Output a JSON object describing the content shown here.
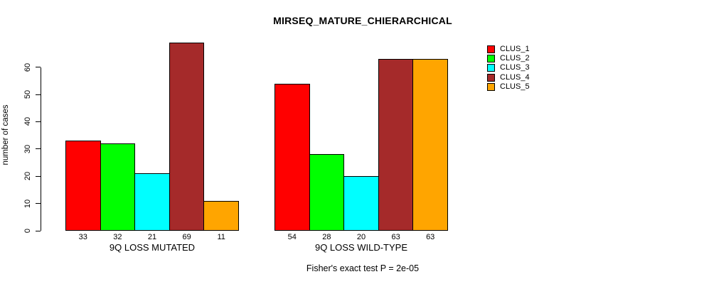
{
  "chart_data": {
    "type": "bar",
    "title": "MIRSEQ_MATURE_CHIERARCHICAL",
    "categories": [
      "9Q LOSS MUTATED",
      "9Q LOSS WILD-TYPE"
    ],
    "series": [
      {
        "name": "CLUS_1",
        "color": "#ff0000",
        "values": [
          33,
          54
        ]
      },
      {
        "name": "CLUS_2",
        "color": "#00ff00",
        "values": [
          32,
          28
        ]
      },
      {
        "name": "CLUS_3",
        "color": "#00ffff",
        "values": [
          21,
          20
        ]
      },
      {
        "name": "CLUS_4",
        "color": "#a52a2a",
        "values": [
          69,
          63
        ]
      },
      {
        "name": "CLUS_5",
        "color": "#ffa500",
        "values": [
          11,
          63
        ]
      }
    ],
    "xlabel": "",
    "ylabel": "number of cases",
    "ylim": [
      0,
      69
    ],
    "yticks": [
      0,
      10,
      20,
      30,
      40,
      50,
      60
    ],
    "bar_value_labels": true,
    "grid": false,
    "legend_position": "top-right",
    "annotation": "Fisher's exact test P = 2e-05"
  }
}
